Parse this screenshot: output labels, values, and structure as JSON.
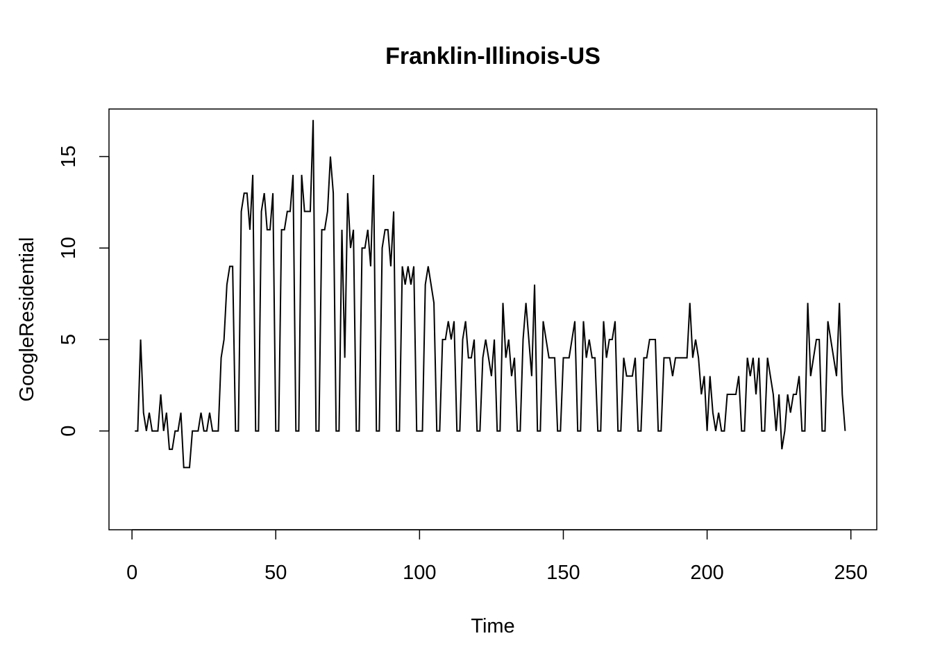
{
  "chart_data": {
    "type": "line",
    "title": "Franklin-Illinois-US",
    "xlabel": "Time",
    "ylabel": "GoogleResidential",
    "xlim": [
      -8,
      259
    ],
    "ylim": [
      -5.4,
      17.6
    ],
    "x_ticks": [
      0,
      50,
      100,
      150,
      200,
      250
    ],
    "y_ticks": [
      0,
      5,
      10,
      15
    ],
    "grid": false,
    "legend": "none",
    "line_color": "#000000",
    "x_start": 1,
    "values": [
      0,
      0,
      5,
      1,
      0,
      1,
      0,
      0,
      0,
      2,
      0,
      1,
      -1,
      -1,
      0,
      0,
      1,
      -2,
      -2,
      -2,
      0,
      0,
      0,
      1,
      0,
      0,
      1,
      0,
      0,
      0,
      4,
      5,
      8,
      9,
      9,
      0,
      0,
      12,
      13,
      13,
      11,
      14,
      0,
      0,
      12,
      13,
      11,
      11,
      13,
      0,
      0,
      11,
      11,
      12,
      12,
      14,
      0,
      0,
      14,
      12,
      12,
      12,
      17,
      0,
      0,
      11,
      11,
      12,
      15,
      13,
      0,
      0,
      11,
      4,
      13,
      10,
      11,
      0,
      0,
      10,
      10,
      11,
      9,
      14,
      0,
      0,
      10,
      11,
      11,
      9,
      12,
      0,
      0,
      9,
      8,
      9,
      8,
      9,
      0,
      0,
      0,
      8,
      9,
      8,
      7,
      0,
      0,
      5,
      5,
      6,
      5,
      6,
      0,
      0,
      5,
      6,
      4,
      4,
      5,
      0,
      0,
      4,
      5,
      4,
      3,
      5,
      0,
      0,
      7,
      4,
      5,
      3,
      4,
      0,
      0,
      5,
      7,
      5,
      3,
      8,
      0,
      0,
      6,
      5,
      4,
      4,
      4,
      0,
      0,
      4,
      4,
      4,
      5,
      6,
      0,
      0,
      6,
      4,
      5,
      4,
      4,
      0,
      0,
      6,
      4,
      5,
      5,
      6,
      0,
      0,
      4,
      3,
      3,
      3,
      4,
      0,
      0,
      4,
      4,
      5,
      5,
      5,
      0,
      0,
      4,
      4,
      4,
      3,
      4,
      4,
      4,
      4,
      4,
      7,
      4,
      5,
      4,
      2,
      3,
      0,
      3,
      1,
      0,
      1,
      0,
      0,
      2,
      2,
      2,
      2,
      3,
      0,
      0,
      4,
      3,
      4,
      2,
      4,
      0,
      0,
      4,
      3,
      2,
      0,
      2,
      -1,
      0,
      2,
      1,
      2,
      2,
      3,
      0,
      0,
      7,
      3,
      4,
      5,
      5,
      0,
      0,
      6,
      5,
      4,
      3,
      7,
      2,
      0
    ]
  }
}
